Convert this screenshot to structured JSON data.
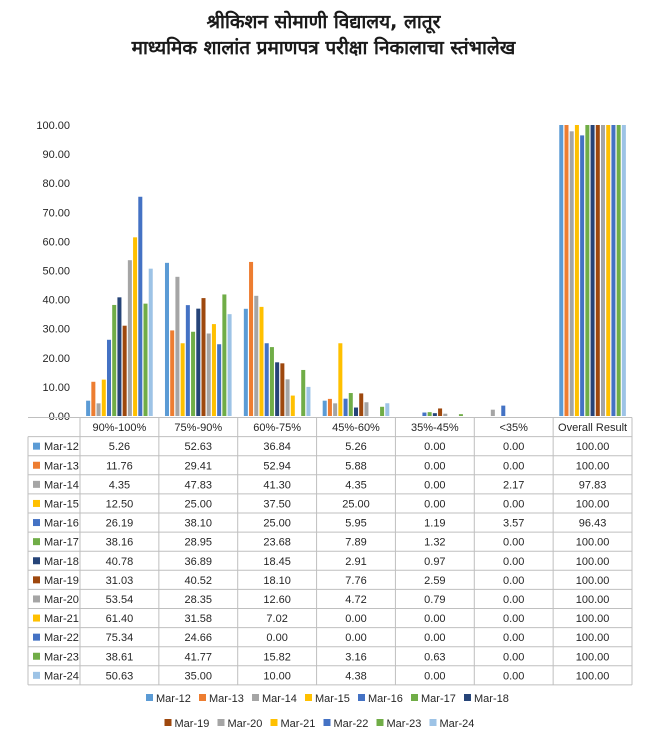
{
  "chart_data": {
    "type": "bar",
    "title": "श्रीकिशन सोमाणी विद्यालय, लातूर",
    "subtitle": "माध्यमिक शालांत प्रमाणपत्र परीक्षा निकालाचा स्तंभालेख",
    "xlabel": "",
    "ylabel": "",
    "ylim": [
      0,
      100
    ],
    "yticks": [
      "0.00",
      "10.00",
      "20.00",
      "30.00",
      "40.00",
      "50.00",
      "60.00",
      "70.00",
      "80.00",
      "90.00",
      "100.00"
    ],
    "grid": false,
    "legend_position": "bottom",
    "data_table": true,
    "categories": [
      "90%-100%",
      "75%-90%",
      "60%-75%",
      "45%-60%",
      "35%-45%",
      "<35%",
      "Overall Result"
    ],
    "series": [
      {
        "name": "Mar-12",
        "color": "#5b9bd5",
        "values": [
          5.26,
          52.63,
          36.84,
          5.26,
          0.0,
          0.0,
          100.0
        ],
        "labels": [
          "5.26",
          "52.63",
          "36.84",
          "5.26",
          "0.00",
          "0.00",
          "100.00"
        ]
      },
      {
        "name": "Mar-13",
        "color": "#ed7d31",
        "values": [
          11.76,
          29.41,
          52.94,
          5.88,
          0.0,
          0.0,
          100.0
        ],
        "labels": [
          "11.76",
          "29.41",
          "52.94",
          "5.88",
          "0.00",
          "0.00",
          "100.00"
        ]
      },
      {
        "name": "Mar-14",
        "color": "#a5a5a5",
        "values": [
          4.35,
          47.83,
          41.3,
          4.35,
          0.0,
          2.17,
          97.83
        ],
        "labels": [
          "4.35",
          "47.83",
          "41.30",
          "4.35",
          "0.00",
          "2.17",
          "97.83"
        ]
      },
      {
        "name": "Mar-15",
        "color": "#ffc000",
        "values": [
          12.5,
          25.0,
          37.5,
          25.0,
          0.0,
          0.0,
          100.0
        ],
        "labels": [
          "12.50",
          "25.00",
          "37.50",
          "25.00",
          "0.00",
          "0.00",
          "100.00"
        ]
      },
      {
        "name": "Mar-16",
        "color": "#4472c4",
        "values": [
          26.19,
          38.1,
          25.0,
          5.95,
          1.19,
          3.57,
          96.43
        ],
        "labels": [
          "26.19",
          "38.10",
          "25.00",
          "5.95",
          "1.19",
          "3.57",
          "96.43"
        ]
      },
      {
        "name": "Mar-17",
        "color": "#70ad47",
        "values": [
          38.16,
          28.95,
          23.68,
          7.89,
          1.32,
          0.0,
          100.0
        ],
        "labels": [
          "38.16",
          "28.95",
          "23.68",
          "7.89",
          "1.32",
          "0.00",
          "100.00"
        ]
      },
      {
        "name": "Mar-18",
        "color": "#264478",
        "values": [
          40.78,
          36.89,
          18.45,
          2.91,
          0.97,
          0.0,
          100.0
        ],
        "labels": [
          "40.78",
          "36.89",
          "18.45",
          "2.91",
          "0.97",
          "0.00",
          "100.00"
        ]
      },
      {
        "name": "Mar-19",
        "color": "#9e480e",
        "values": [
          31.03,
          40.52,
          18.1,
          7.76,
          2.59,
          0.0,
          100.0
        ],
        "labels": [
          "31.03",
          "40.52",
          "18.10",
          "7.76",
          "2.59",
          "0.00",
          "100.00"
        ]
      },
      {
        "name": "Mar-20",
        "color": "#a5a5a5",
        "values": [
          53.54,
          28.35,
          12.6,
          4.72,
          0.79,
          0.0,
          100.0
        ],
        "labels": [
          "53.54",
          "28.35",
          "12.60",
          "4.72",
          "0.79",
          "0.00",
          "100.00"
        ]
      },
      {
        "name": "Mar-21",
        "color": "#ffc000",
        "values": [
          61.4,
          31.58,
          7.02,
          0.0,
          0.0,
          0.0,
          100.0
        ],
        "labels": [
          "61.40",
          "31.58",
          "7.02",
          "0.00",
          "0.00",
          "0.00",
          "100.00"
        ]
      },
      {
        "name": "Mar-22",
        "color": "#4472c4",
        "values": [
          75.34,
          24.66,
          0.0,
          0.0,
          0.0,
          0.0,
          100.0
        ],
        "labels": [
          "75.34",
          "24.66",
          "0.00",
          "0.00",
          "0.00",
          "0.00",
          "100.00"
        ]
      },
      {
        "name": "Mar-23",
        "color": "#70ad47",
        "values": [
          38.61,
          41.77,
          15.82,
          3.16,
          0.63,
          0.0,
          100.0
        ],
        "labels": [
          "38.61",
          "41.77",
          "15.82",
          "3.16",
          "0.63",
          "0.00",
          "100.00"
        ]
      },
      {
        "name": "Mar-24",
        "color": "#9dc3e6",
        "values": [
          50.63,
          35.0,
          10.0,
          4.38,
          0.0,
          0.0,
          100.0
        ],
        "labels": [
          "50.63",
          "35.00",
          "10.00",
          "4.38",
          "0.00",
          "0.00",
          "100.00"
        ]
      }
    ]
  }
}
